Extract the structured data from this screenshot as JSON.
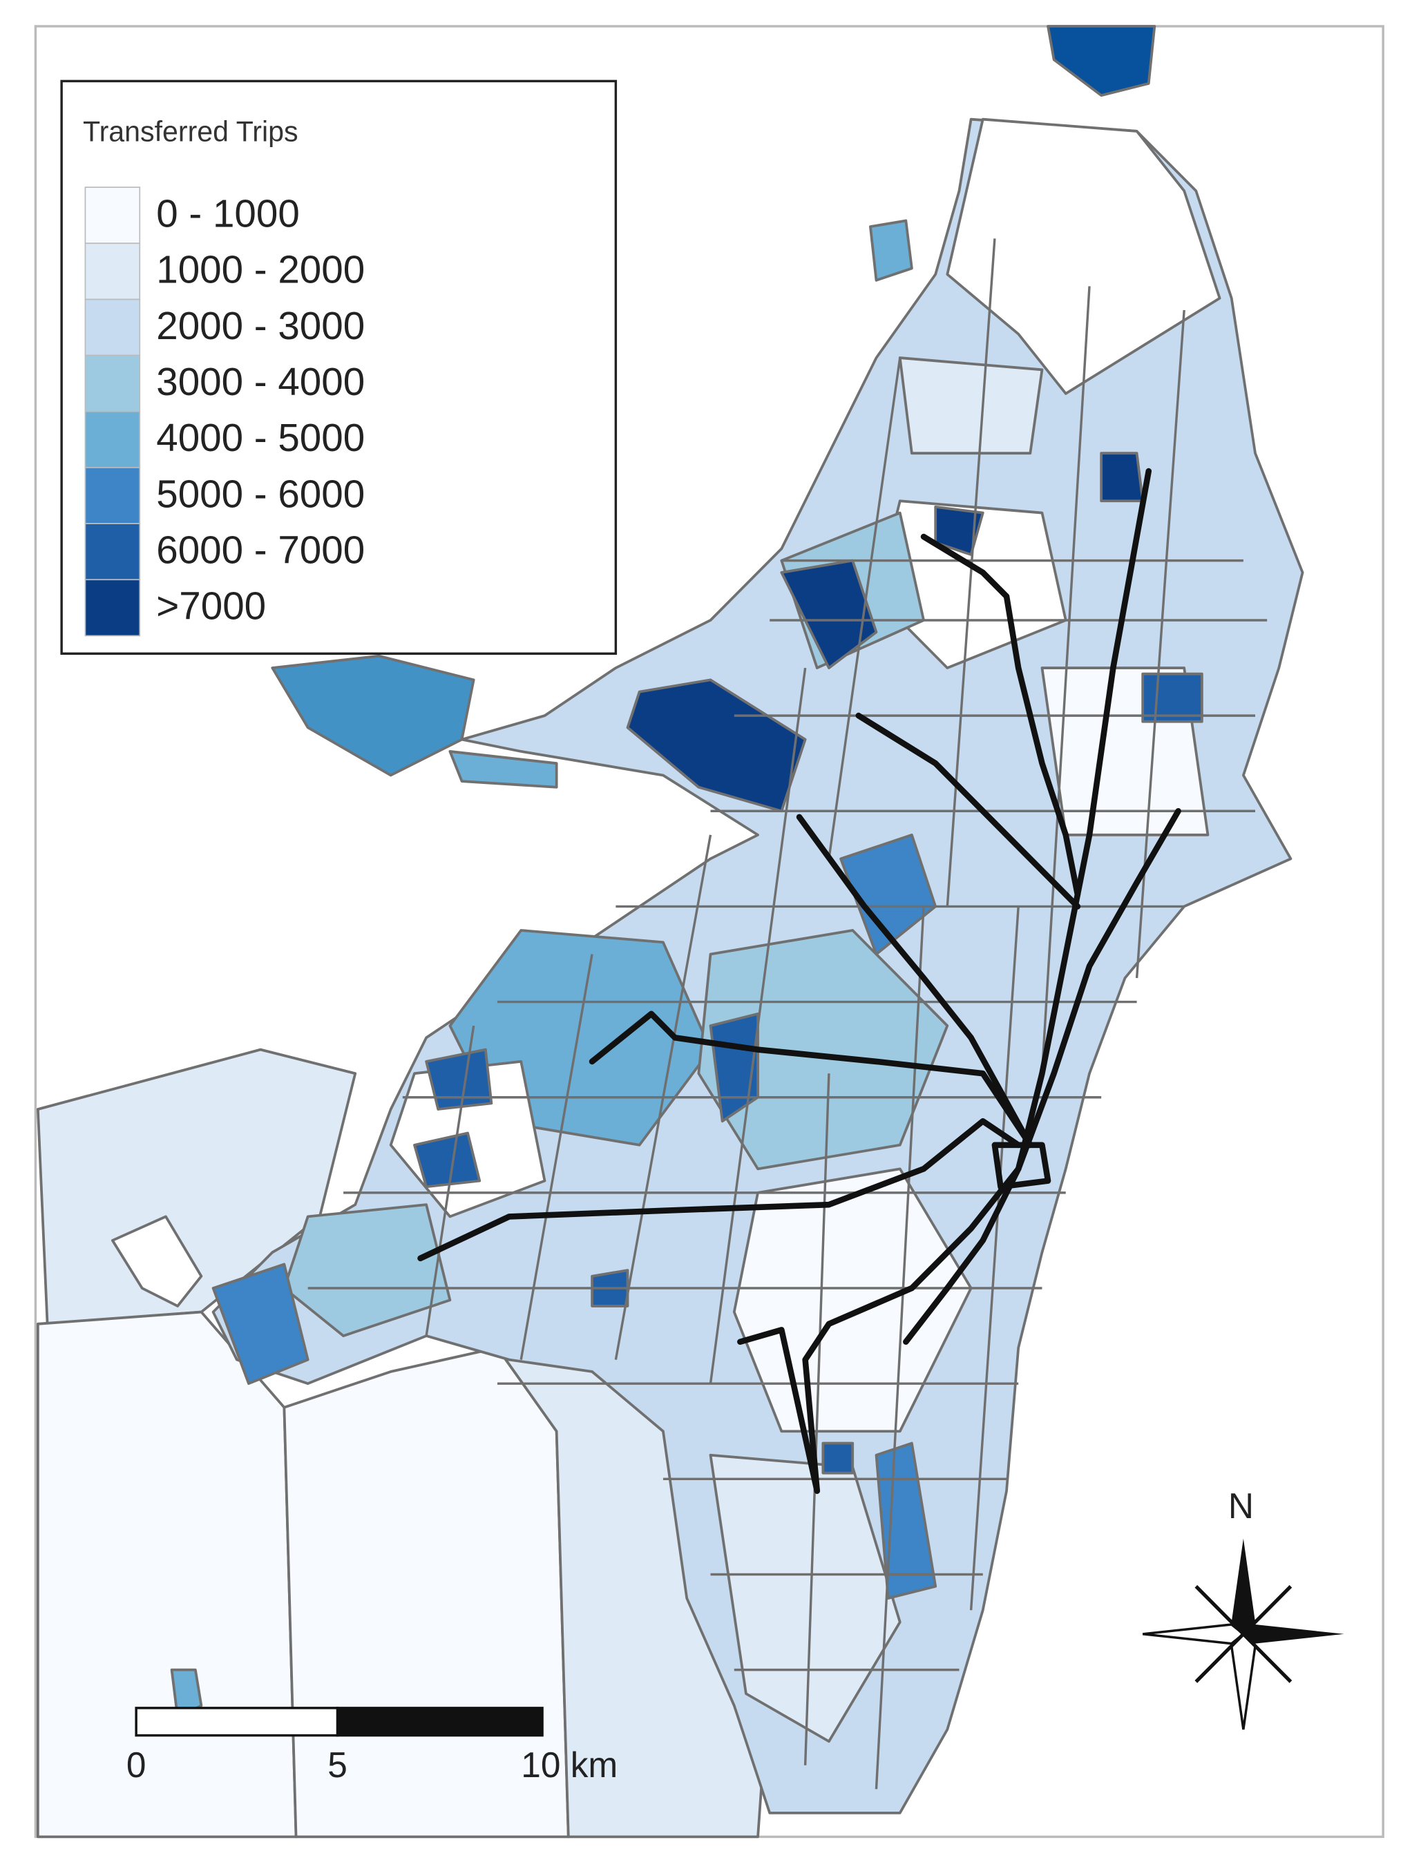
{
  "legend": {
    "title": "Transferred Trips",
    "items": [
      {
        "label": "0 - 1000",
        "color": "#f7fbff"
      },
      {
        "label": "1000 - 2000",
        "color": "#deebf7"
      },
      {
        "label": "2000 - 3000",
        "color": "#c6dbef"
      },
      {
        "label": "3000 - 4000",
        "color": "#9ecae1"
      },
      {
        "label": "4000 - 5000",
        "color": "#6baed6"
      },
      {
        "label": "5000 - 6000",
        "color": "#3d85c6"
      },
      {
        "label": "6000 - 7000",
        "color": "#1f5fa8"
      },
      {
        "label": ">7000",
        "color": "#0b3d85"
      }
    ]
  },
  "scale_bar": {
    "labels": [
      "0",
      "5",
      "10 km"
    ]
  },
  "north_arrow": {
    "label": "N"
  }
}
